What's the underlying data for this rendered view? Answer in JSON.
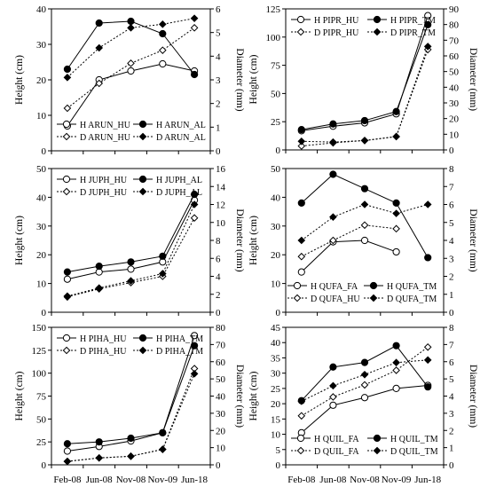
{
  "x_categories": [
    "Feb-08",
    "Jun-08",
    "Nov-08",
    "Nov-09",
    "Jun-18"
  ],
  "chart_data": [
    {
      "type": "line",
      "ylabel": "Height (cm)",
      "y2label": "Diameter (mm)",
      "ylim": [
        0,
        40
      ],
      "yticks": [
        0,
        10,
        20,
        30,
        40
      ],
      "y2lim": [
        0,
        6
      ],
      "y2ticks": [
        0,
        1,
        2,
        3,
        4,
        5,
        6
      ],
      "legend_position": "bottom-left",
      "categories": [
        "Feb-08",
        "Jun-08",
        "Nov-08",
        "Nov-09",
        "Jun-18"
      ],
      "series": [
        {
          "name": "H ARUN_HU",
          "axis": "left",
          "marker": "circle-open",
          "dash": false,
          "values": [
            7,
            20,
            22.5,
            24.5,
            22.5
          ]
        },
        {
          "name": "H ARUN_AL",
          "axis": "left",
          "marker": "circle-filled",
          "dash": false,
          "values": [
            23,
            36,
            36.5,
            33,
            21.5
          ]
        },
        {
          "name": "D ARUN_HU",
          "axis": "right",
          "marker": "diamond-open",
          "dash": true,
          "values": [
            1.8,
            2.85,
            3.7,
            4.25,
            5.2
          ]
        },
        {
          "name": "D ARUN_AL",
          "axis": "right",
          "marker": "diamond-filled",
          "dash": true,
          "values": [
            3.1,
            4.35,
            5.2,
            5.35,
            5.6
          ]
        }
      ]
    },
    {
      "type": "line",
      "ylabel": "Height (cm)",
      "y2label": "Diameter (mm)",
      "ylim": [
        0,
        125
      ],
      "yticks": [
        0,
        25,
        50,
        75,
        100,
        125
      ],
      "y2lim": [
        0,
        90
      ],
      "y2ticks": [
        0,
        10,
        20,
        30,
        40,
        50,
        60,
        70,
        80,
        90
      ],
      "legend_position": "top-left",
      "categories": [
        "Feb-08",
        "Jun-08",
        "Nov-08",
        "Nov-09",
        "Jun-18"
      ],
      "series": [
        {
          "name": "H PIPR_HU",
          "axis": "left",
          "marker": "circle-open",
          "dash": false,
          "values": [
            17,
            21,
            24,
            32,
            119
          ]
        },
        {
          "name": "H PIPR_TM",
          "axis": "left",
          "marker": "circle-filled",
          "dash": false,
          "values": [
            18,
            23,
            26,
            34,
            111
          ]
        },
        {
          "name": "D PIPR_HU",
          "axis": "right",
          "marker": "diamond-open",
          "dash": true,
          "values": [
            2.5,
            4.5,
            6,
            8.5,
            64
          ]
        },
        {
          "name": "D PIPR_TM",
          "axis": "right",
          "marker": "diamond-filled",
          "dash": true,
          "values": [
            5.5,
            5,
            6,
            8.5,
            66
          ]
        }
      ]
    },
    {
      "type": "line",
      "ylabel": "Height (cm)",
      "y2label": "Diameter (mm)",
      "ylim": [
        0,
        50
      ],
      "yticks": [
        0,
        10,
        20,
        30,
        40,
        50
      ],
      "y2lim": [
        0,
        16
      ],
      "y2ticks": [
        0,
        2,
        4,
        6,
        8,
        10,
        12,
        14,
        16
      ],
      "legend_position": "top-left",
      "categories": [
        "Feb-08",
        "Jun-08",
        "Nov-08",
        "Nov-09",
        "Jun-18"
      ],
      "series": [
        {
          "name": "H JUPH_HU",
          "axis": "left",
          "marker": "circle-open",
          "dash": false,
          "values": [
            11.5,
            14,
            15,
            17.5,
            39
          ]
        },
        {
          "name": "H JUPH_AL",
          "axis": "left",
          "marker": "circle-filled",
          "dash": false,
          "values": [
            14,
            16,
            17.5,
            19.5,
            41
          ]
        },
        {
          "name": "D JUPH_HU",
          "axis": "right",
          "marker": "diamond-open",
          "dash": true,
          "values": [
            1.7,
            2.6,
            3.3,
            4,
            10.5
          ]
        },
        {
          "name": "D JUPH_AL",
          "axis": "right",
          "marker": "diamond-filled",
          "dash": true,
          "values": [
            1.8,
            2.7,
            3.5,
            4.3,
            12
          ]
        }
      ]
    },
    {
      "type": "line",
      "ylabel": "Height (cm)",
      "y2label": "Diameter (mm)",
      "ylim": [
        0,
        50
      ],
      "yticks": [
        0,
        10,
        20,
        30,
        40,
        50
      ],
      "y2lim": [
        0,
        8
      ],
      "y2ticks": [
        0,
        1,
        2,
        3,
        4,
        5,
        6,
        7,
        8
      ],
      "legend_position": "bottom-right",
      "categories": [
        "Feb-08",
        "Jun-08",
        "Nov-08",
        "Nov-09",
        "Jun-18"
      ],
      "series": [
        {
          "name": "H QUFA_FA",
          "axis": "left",
          "marker": "circle-open",
          "dash": false,
          "values": [
            14,
            24.5,
            25,
            21,
            null
          ]
        },
        {
          "name": "H QUFA_TM",
          "axis": "left",
          "marker": "circle-filled",
          "dash": false,
          "values": [
            38,
            48,
            43,
            38,
            19
          ]
        },
        {
          "name": "D QUFA_HU",
          "axis": "right",
          "marker": "diamond-open",
          "dash": true,
          "values": [
            3.1,
            4,
            4.85,
            4.65,
            null
          ]
        },
        {
          "name": "D QUFA_TM",
          "axis": "right",
          "marker": "diamond-filled",
          "dash": true,
          "values": [
            4,
            5.3,
            6,
            5.5,
            6
          ]
        }
      ]
    },
    {
      "type": "line",
      "ylabel": "Height (cm)",
      "y2label": "Diameter (mm)",
      "ylim": [
        0,
        150
      ],
      "yticks": [
        0,
        25,
        50,
        75,
        100,
        125,
        150
      ],
      "y2lim": [
        0,
        80
      ],
      "y2ticks": [
        0,
        10,
        20,
        30,
        40,
        50,
        60,
        70,
        80
      ],
      "legend_position": "top-left",
      "categories": [
        "Feb-08",
        "Jun-08",
        "Nov-08",
        "Nov-09",
        "Jun-18"
      ],
      "series": [
        {
          "name": "H PIHA_HU",
          "axis": "left",
          "marker": "circle-open",
          "dash": false,
          "values": [
            15,
            20,
            26,
            35,
            141
          ]
        },
        {
          "name": "H PIHA_TM",
          "axis": "left",
          "marker": "circle-filled",
          "dash": false,
          "values": [
            23,
            25,
            29,
            35,
            130
          ]
        },
        {
          "name": "D PIHA_HU",
          "axis": "right",
          "marker": "diamond-open",
          "dash": true,
          "values": [
            2,
            4,
            5,
            9,
            56
          ]
        },
        {
          "name": "D PIHA_TM",
          "axis": "right",
          "marker": "diamond-filled",
          "dash": true,
          "values": [
            2,
            4,
            5,
            9,
            53
          ]
        }
      ]
    },
    {
      "type": "line",
      "ylabel": "Height (cm)",
      "y2label": "Diameter (mm)",
      "ylim": [
        0,
        45
      ],
      "yticks": [
        0,
        5,
        10,
        15,
        20,
        25,
        30,
        35,
        40,
        45
      ],
      "y2lim": [
        0,
        8
      ],
      "y2ticks": [
        0,
        1,
        2,
        3,
        4,
        5,
        6,
        7,
        8
      ],
      "legend_position": "bottom-left",
      "categories": [
        "Feb-08",
        "Jun-08",
        "Nov-08",
        "Nov-09",
        "Jun-18"
      ],
      "series": [
        {
          "name": "H QUIL_FA",
          "axis": "left",
          "marker": "circle-open",
          "dash": false,
          "values": [
            10.5,
            19.5,
            22,
            25,
            26
          ]
        },
        {
          "name": "H QUIL_TM",
          "axis": "left",
          "marker": "circle-filled",
          "dash": false,
          "values": [
            21,
            32,
            33.5,
            39,
            25.5
          ]
        },
        {
          "name": "D QUIL_FA",
          "axis": "right",
          "marker": "diamond-open",
          "dash": true,
          "values": [
            2.85,
            3.95,
            4.65,
            5.5,
            6.85
          ]
        },
        {
          "name": "D QUIL_TM",
          "axis": "right",
          "marker": "diamond-filled",
          "dash": true,
          "values": [
            3.7,
            4.6,
            5.25,
            5.95,
            6.1
          ]
        }
      ]
    }
  ]
}
